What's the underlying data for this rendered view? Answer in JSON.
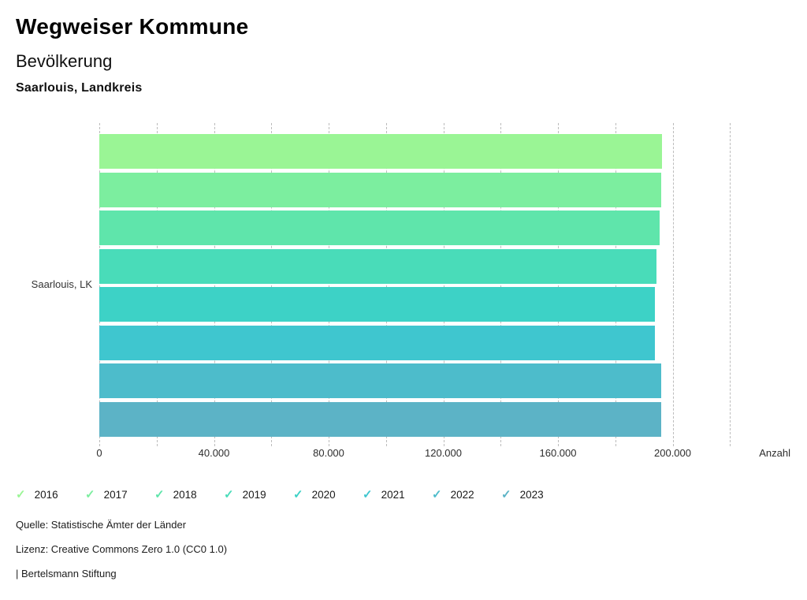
{
  "header": {
    "title": "Wegweiser Kommune",
    "subtitle": "Bevölkerung",
    "region": "Saarlouis, Landkreis"
  },
  "chart_data": {
    "type": "bar",
    "orientation": "horizontal",
    "category": "Saarlouis, LK",
    "xlabel": "Anzahl",
    "xlim": [
      0,
      220000
    ],
    "tick_step": 20000,
    "label_step": 40000,
    "label_max": 200000,
    "grid": "dashed-vertical",
    "gridline_color": "#bcbcbc",
    "legend_position": "bottom",
    "legend_check_icon": "✓",
    "series": [
      {
        "name": "2016",
        "value": 196400,
        "color": "#9af595"
      },
      {
        "name": "2017",
        "value": 195900,
        "color": "#7cee9f"
      },
      {
        "name": "2018",
        "value": 195400,
        "color": "#5fe5ab"
      },
      {
        "name": "2019",
        "value": 194300,
        "color": "#49dcb9"
      },
      {
        "name": "2020",
        "value": 193800,
        "color": "#3dd2c6"
      },
      {
        "name": "2021",
        "value": 193700,
        "color": "#3fc6cf"
      },
      {
        "name": "2022",
        "value": 195900,
        "color": "#4dbccb"
      },
      {
        "name": "2023",
        "value": 196000,
        "color": "#5cb3c6"
      }
    ]
  },
  "footer": {
    "source": "Quelle: Statistische Ämter der Länder",
    "license": "Lizenz: Creative Commons Zero 1.0 (CC0 1.0)",
    "attribution": "| Bertelsmann Stiftung"
  }
}
